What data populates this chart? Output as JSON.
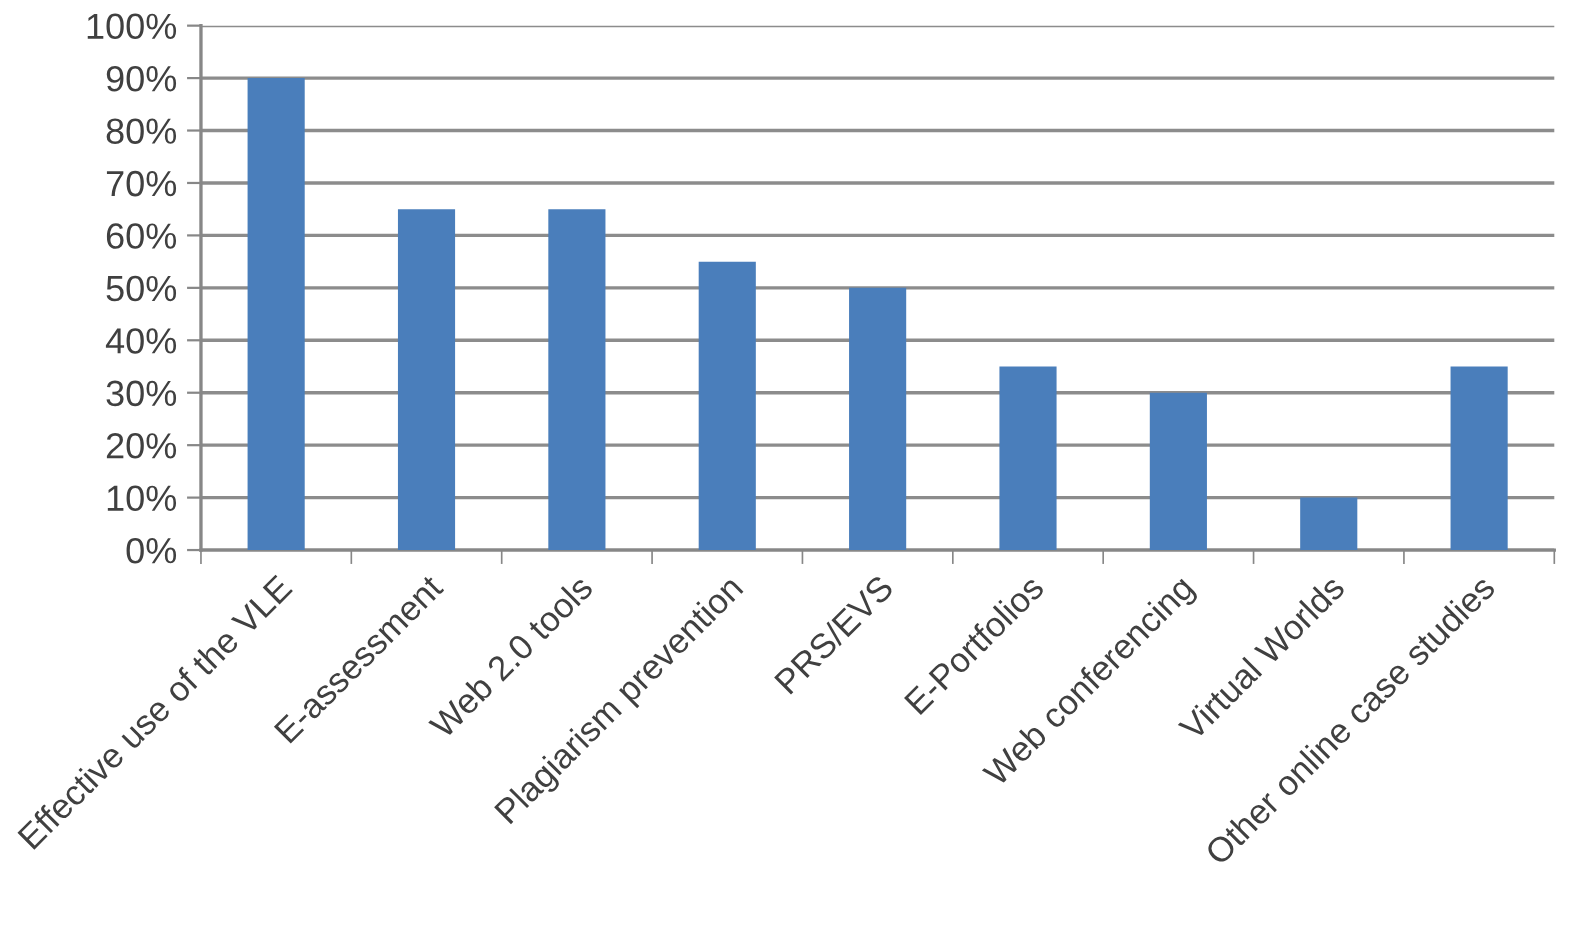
{
  "chart_data": {
    "type": "bar",
    "categories": [
      "Effective use of the VLE",
      "E-assessment",
      "Web 2.0 tools",
      "Plagiarism prevention",
      "PRS/EVS",
      "E-Portfolios",
      "Web conferencing",
      "Virtual Worlds",
      "Other online case studies"
    ],
    "values": [
      90,
      65,
      65,
      55,
      50,
      35,
      30,
      10,
      35
    ],
    "color": "#4a7ebb",
    "ylim": [
      0,
      100
    ],
    "yticks": [
      {
        "value": 0,
        "label": "0%"
      },
      {
        "value": 10,
        "label": "10%"
      },
      {
        "value": 20,
        "label": "20%"
      },
      {
        "value": 30,
        "label": "30%"
      },
      {
        "value": 40,
        "label": "40%"
      },
      {
        "value": 50,
        "label": "50%"
      },
      {
        "value": 60,
        "label": "60%"
      },
      {
        "value": 70,
        "label": "70%"
      },
      {
        "value": 80,
        "label": "80%"
      },
      {
        "value": 90,
        "label": "90%"
      },
      {
        "value": 100,
        "label": "100%"
      }
    ],
    "grid": "y"
  }
}
